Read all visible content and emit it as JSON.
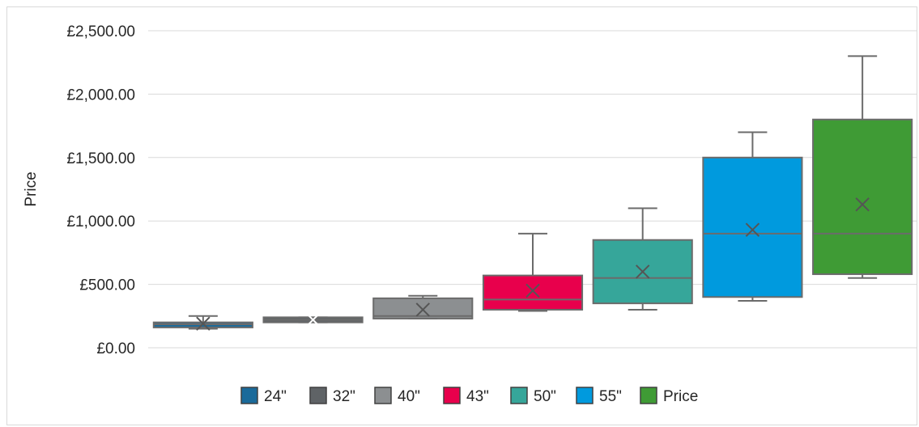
{
  "chart_data": {
    "type": "box",
    "title": "",
    "xlabel": "",
    "ylabel": "Price",
    "ylim": [
      0,
      2500
    ],
    "y_ticks": [
      0,
      500,
      1000,
      1500,
      2000,
      2500
    ],
    "y_tick_labels": [
      "£0.00",
      "£500.00",
      "£1,000.00",
      "£1,500.00",
      "£2,000.00",
      "£2,500.00"
    ],
    "grid": true,
    "legend_position": "bottom",
    "series": [
      {
        "name": "24\"",
        "color": "#1a6a9a",
        "min": 150,
        "q1": 160,
        "median": 185,
        "q3": 200,
        "max": 250,
        "mean": 190
      },
      {
        "name": "32\"",
        "color": "#5f6366",
        "min": 200,
        "q1": 200,
        "median": 220,
        "q3": 240,
        "max": 240,
        "mean": 220
      },
      {
        "name": "40\"",
        "color": "#8c8f91",
        "min": 230,
        "q1": 230,
        "median": 250,
        "q3": 390,
        "max": 410,
        "mean": 300
      },
      {
        "name": "43\"",
        "color": "#e8004c",
        "min": 290,
        "q1": 300,
        "median": 380,
        "q3": 570,
        "max": 900,
        "mean": 450
      },
      {
        "name": "50\"",
        "color": "#36a69a",
        "min": 300,
        "q1": 350,
        "median": 550,
        "q3": 850,
        "max": 1100,
        "mean": 600
      },
      {
        "name": "55\"",
        "color": "#009ade",
        "min": 370,
        "q1": 400,
        "median": 900,
        "q3": 1500,
        "max": 1700,
        "mean": 930
      },
      {
        "name": "Price",
        "color": "#3f9b35",
        "min": 550,
        "q1": 580,
        "median": 900,
        "q3": 1800,
        "max": 2300,
        "mean": 1130
      }
    ]
  }
}
